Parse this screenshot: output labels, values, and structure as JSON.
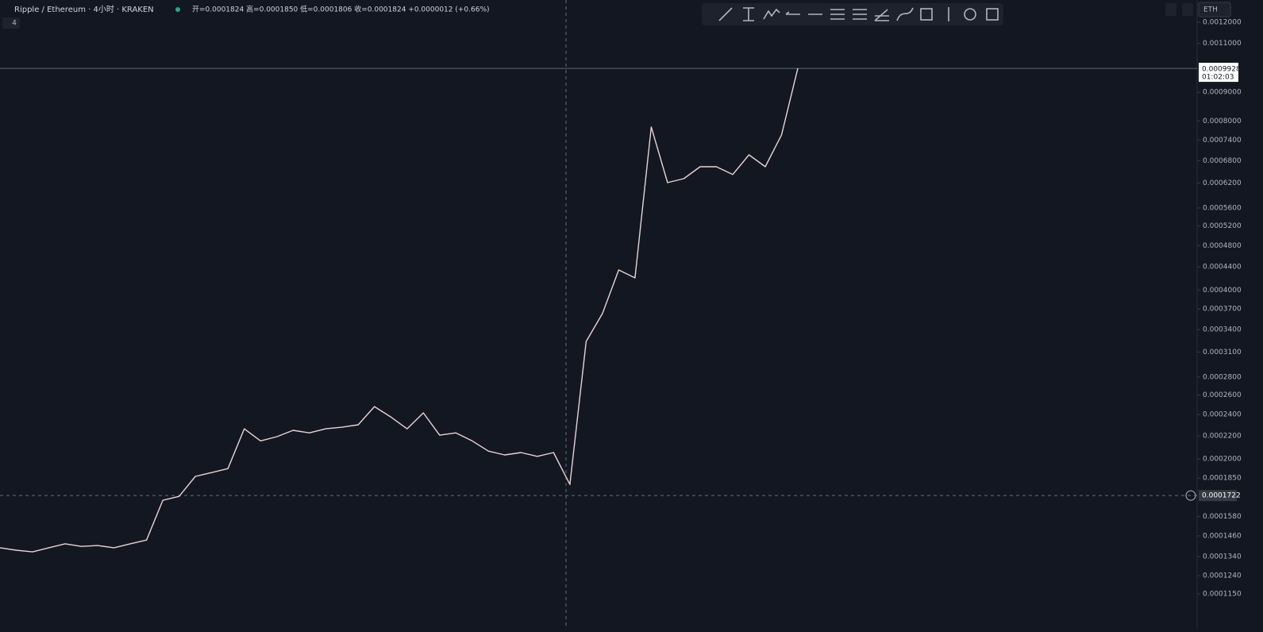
{
  "header": {
    "symbol": "Ripple / Ethereum · 4小时 · KRAKEN",
    "ohlc": "开=0.0001824 高=0.0001850 低=0.0001806 收=0.0001824 +0.0000012 (+0.66%)",
    "interval_badge": "4",
    "currency": "ETH"
  },
  "chart_data": {
    "type": "line",
    "log_scale": true,
    "color": "#e8d3d6",
    "values": [
      0.000139,
      0.0001376,
      0.0001367,
      0.000139,
      0.0001413,
      0.0001398,
      0.0001403,
      0.000139,
      0.0001413,
      0.0001435,
      0.0001689,
      0.0001716,
      0.0001863,
      0.0001892,
      0.0001923,
      0.0002264,
      0.0002155,
      0.0002192,
      0.000225,
      0.0002227,
      0.0002264,
      0.0002279,
      0.0002302,
      0.000248,
      0.0002377,
      0.0002264,
      0.0002417,
      0.0002206,
      0.0002227,
      0.0002155,
      0.0002066,
      0.0002034,
      0.0002054,
      0.0002022,
      0.0002054,
      0.0001802,
      0.000324,
      0.0003632,
      0.0004344,
      0.0004204,
      0.0007806,
      0.0006215,
      0.0006316,
      0.0006632,
      0.0006632,
      0.0006424,
      0.0006965,
      0.0006632,
      0.0007556,
      0.0009928
    ],
    "ylim": [
      0.000103,
      0.001314
    ],
    "yticks": [
      {
        "value": 0.0012,
        "label": "0.0012000"
      },
      {
        "value": 0.0011,
        "label": "0.0011000"
      },
      {
        "value": 0.0009,
        "label": "0.0009000"
      },
      {
        "value": 0.0008,
        "label": "0.0008000"
      },
      {
        "value": 0.00074,
        "label": "0.0007400"
      },
      {
        "value": 0.00068,
        "label": "0.0006800"
      },
      {
        "value": 0.00062,
        "label": "0.0006200"
      },
      {
        "value": 0.00056,
        "label": "0.0005600"
      },
      {
        "value": 0.00052,
        "label": "0.0005200"
      },
      {
        "value": 0.00048,
        "label": "0.0004800"
      },
      {
        "value": 0.00044,
        "label": "0.0004400"
      },
      {
        "value": 0.0004,
        "label": "0.0004000"
      },
      {
        "value": 0.00037,
        "label": "0.0003700"
      },
      {
        "value": 0.00034,
        "label": "0.0003400"
      },
      {
        "value": 0.00031,
        "label": "0.0003100"
      },
      {
        "value": 0.00028,
        "label": "0.0002800"
      },
      {
        "value": 0.00026,
        "label": "0.0002600"
      },
      {
        "value": 0.00024,
        "label": "0.0002400"
      },
      {
        "value": 0.00022,
        "label": "0.0002200"
      },
      {
        "value": 0.0002,
        "label": "0.0002000"
      },
      {
        "value": 0.000185,
        "label": "0.0001850"
      },
      {
        "value": 0.000158,
        "label": "0.0001580"
      },
      {
        "value": 0.000146,
        "label": "0.0001460"
      },
      {
        "value": 0.000134,
        "label": "0.0001340"
      },
      {
        "value": 0.000124,
        "label": "0.0001240"
      },
      {
        "value": 0.000115,
        "label": "0.0001150"
      }
    ],
    "last_price": 0.0009928,
    "last_time": "01:02:03",
    "crosshair_price": 0.0001722
  }
}
